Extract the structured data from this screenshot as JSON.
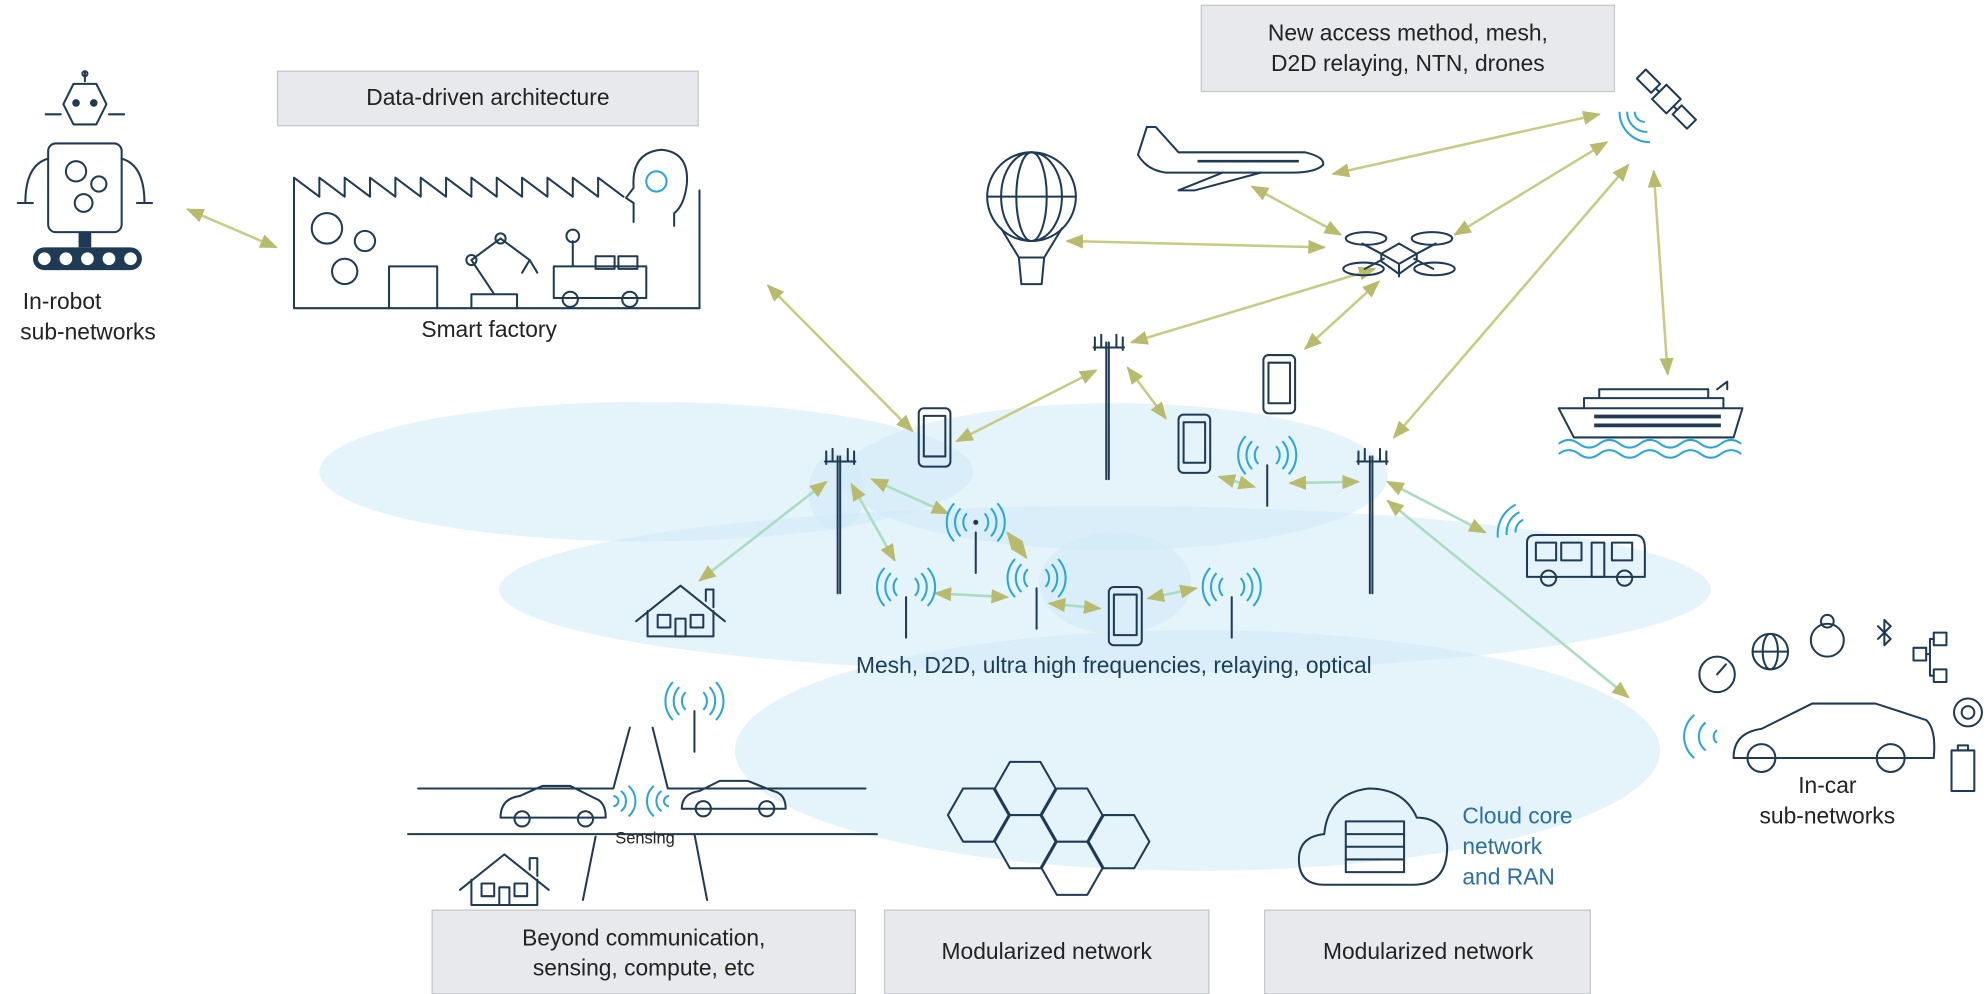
{
  "boxes": {
    "data_driven": "Data-driven architecture",
    "new_access": [
      "New access method, mesh,",
      "D2D relaying, NTN, drones"
    ],
    "beyond": [
      "Beyond communication,",
      "sensing, compute, etc"
    ],
    "modularized_1": "Modularized network",
    "modularized_2": "Modularized network"
  },
  "labels": {
    "robot": [
      "In-robot",
      "sub-networks"
    ],
    "factory": "Smart factory",
    "mesh": "Mesh, D2D, ultra high frequencies, relaying, optical",
    "sensing": "Sensing",
    "cloud": [
      "Cloud core",
      "network",
      "and RAN"
    ],
    "car": [
      "In-car",
      "sub-networks"
    ]
  }
}
